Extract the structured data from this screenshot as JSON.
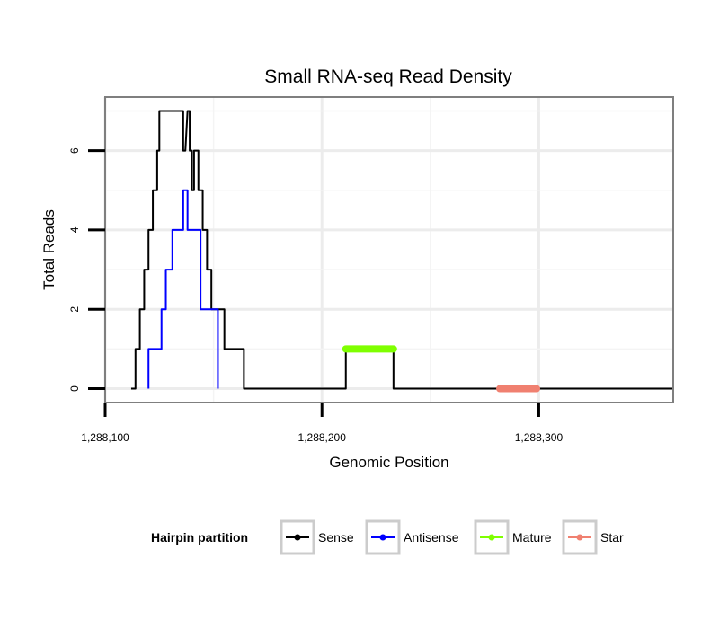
{
  "chart_data": {
    "type": "line",
    "title": "Small RNA-seq Read Density",
    "xlabel": "Genomic Position",
    "ylabel": "Total Reads",
    "xlim": [
      1288100,
      1288362
    ],
    "ylim": [
      -0.35,
      7.35
    ],
    "x_ticks": [
      1288100,
      1288200,
      1288300
    ],
    "x_tick_labels": [
      "1,288,100",
      "1,288,200",
      "1,288,300"
    ],
    "y_ticks": [
      0,
      2,
      4,
      6
    ],
    "y_tick_labels": [
      "0",
      "2",
      "4",
      "6"
    ],
    "grid": true,
    "legend": {
      "title": "Hairpin partition",
      "position": "bottom"
    },
    "series": [
      {
        "name": "Sense",
        "color": "#000000",
        "x": [
          1288112,
          1288114,
          1288114,
          1288116,
          1288116,
          1288118,
          1288118,
          1288120,
          1288120,
          1288122,
          1288122,
          1288124,
          1288124,
          1288125,
          1288125,
          1288127,
          1288127,
          1288136,
          1288136,
          1288137,
          1288138,
          1288139,
          1288139,
          1288140,
          1288140,
          1288141,
          1288141,
          1288143,
          1288143,
          1288145,
          1288145,
          1288147,
          1288147,
          1288149,
          1288149,
          1288153,
          1288153,
          1288155,
          1288155,
          1288159,
          1288159,
          1288164,
          1288164,
          1288211,
          1288211,
          1288233,
          1288233,
          1288362
        ],
        "y": [
          0,
          0,
          1,
          1,
          2,
          2,
          3,
          3,
          4,
          4,
          5,
          5,
          6,
          6,
          7,
          7,
          7,
          7,
          6,
          6,
          7,
          7,
          6,
          6,
          5,
          5,
          6,
          6,
          5,
          5,
          4,
          4,
          3,
          3,
          2,
          2,
          2,
          2,
          1,
          1,
          1,
          1,
          0,
          0,
          1,
          1,
          0,
          0
        ]
      },
      {
        "name": "Antisense",
        "color": "#0000ff",
        "x": [
          1288120,
          1288120,
          1288126,
          1288126,
          1288128,
          1288128,
          1288131,
          1288131,
          1288136,
          1288136,
          1288138,
          1288138,
          1288139,
          1288139,
          1288144,
          1288144,
          1288152,
          1288152
        ],
        "y": [
          0,
          1,
          1,
          2,
          2,
          3,
          3,
          4,
          4,
          5,
          5,
          4,
          4,
          4,
          4,
          2,
          2,
          0
        ]
      },
      {
        "name": "Mature",
        "color": "#7fff00",
        "x": [
          1288211,
          1288233
        ],
        "y": [
          1,
          1
        ]
      },
      {
        "name": "Star",
        "color": "#f08070",
        "x": [
          1288282,
          1288299
        ],
        "y": [
          0,
          0
        ]
      }
    ]
  }
}
